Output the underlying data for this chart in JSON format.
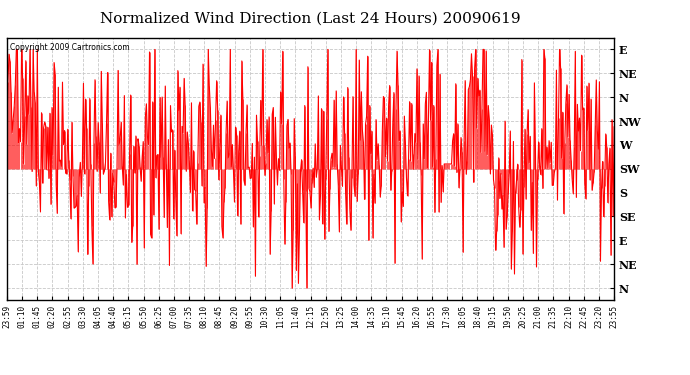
{
  "title": "Normalized Wind Direction (Last 24 Hours) 20090619",
  "copyright_text": "Copyright 2009 Cartronics.com",
  "line_color": "#ff0000",
  "background_color": "#ffffff",
  "plot_bg_color": "#ffffff",
  "grid_color": "#c8c8c8",
  "title_fontsize": 11,
  "ytick_labels": [
    "E",
    "NE",
    "N",
    "NW",
    "W",
    "SW",
    "S",
    "SE",
    "E",
    "NE",
    "N"
  ],
  "ytick_values": [
    11,
    10,
    9,
    8,
    7,
    6,
    5,
    4,
    3,
    2,
    1
  ],
  "xtick_labels": [
    "23:59",
    "01:10",
    "01:45",
    "02:20",
    "02:55",
    "03:30",
    "04:05",
    "04:40",
    "05:15",
    "05:50",
    "06:25",
    "07:00",
    "07:35",
    "08:10",
    "08:45",
    "09:20",
    "09:55",
    "10:30",
    "11:05",
    "11:40",
    "12:15",
    "12:50",
    "13:25",
    "14:00",
    "14:35",
    "15:10",
    "15:45",
    "16:20",
    "16:55",
    "17:30",
    "18:05",
    "18:40",
    "19:15",
    "19:50",
    "20:25",
    "21:00",
    "21:35",
    "22:10",
    "22:45",
    "23:20",
    "23:55"
  ],
  "ylim": [
    0.5,
    11.5
  ],
  "figwidth": 6.9,
  "figheight": 3.75,
  "dpi": 100
}
